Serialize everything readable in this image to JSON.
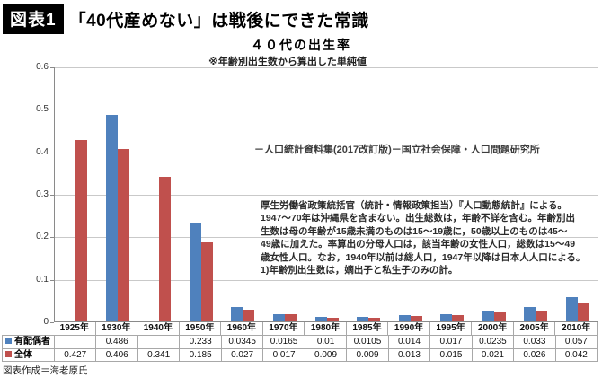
{
  "header": {
    "badge": "図表1",
    "title": "「40代産めない」は戦後にできた常識"
  },
  "chart_data": {
    "type": "bar",
    "title": "４０代の出生率",
    "subtitle": "※年齢別出生数から算出した単純値",
    "source": "－人口統計資料集(2017改訂版)－国立社会保障・人口問題研究所",
    "note_lines": [
      "厚生労働省政策統括官（統計・情報政策担当）『人口動態統計』による。",
      "1947～70年は沖縄県を含まない。出生総数は，年齢不詳を含む。年齢別出",
      "生数は母の年齢が15歳未満のものは15～19歳に，50歳以上のものは45～",
      "49歳に加えた。率算出の分母人口は，該当年齢の女性人口，総数は15～49",
      "歳女性人口。なお，1940年以前は総人口，1947年以降は日本人人口による。",
      "1)年齢別出生数は，嫡出子と私生子のみの計。"
    ],
    "categories": [
      "1925年",
      "1930年",
      "1940年",
      "1950年",
      "1960年",
      "1970年",
      "1980年",
      "1985年",
      "1990年",
      "1995年",
      "2000年",
      "2005年",
      "2010年"
    ],
    "series": [
      {
        "name": "有配偶者",
        "color": "#4F81BD",
        "values": [
          null,
          0.486,
          null,
          0.233,
          0.0345,
          0.0165,
          0.01,
          0.0105,
          0.014,
          0.017,
          0.0235,
          0.033,
          0.057
        ]
      },
      {
        "name": "全体",
        "color": "#C0504D",
        "values": [
          0.427,
          0.406,
          0.341,
          0.185,
          0.027,
          0.017,
          0.009,
          0.009,
          0.013,
          0.015,
          0.021,
          0.026,
          0.042
        ]
      }
    ],
    "ylim": [
      0,
      0.6
    ],
    "ytick_labels": [
      "0",
      "0.1",
      "0.2",
      "0.3",
      "0.4",
      "0.5",
      "0.6"
    ],
    "grid": true,
    "legend_position": "table-left"
  },
  "credit": "図表作成＝海老原氏"
}
